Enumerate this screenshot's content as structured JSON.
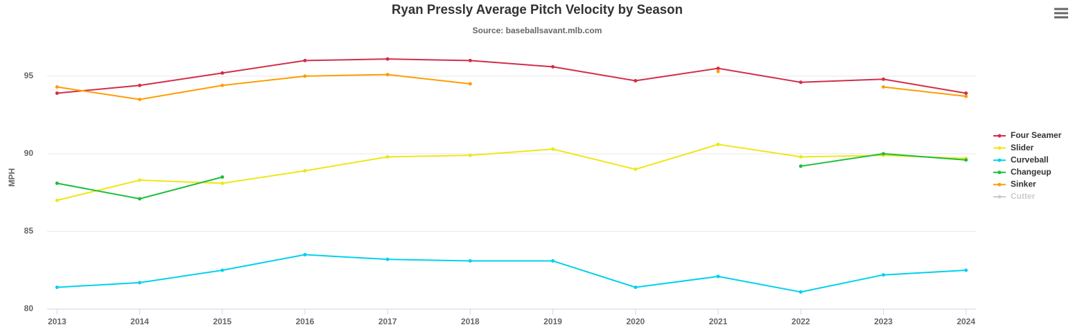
{
  "chart_data": {
    "type": "line",
    "title": "Ryan Pressly Average Pitch Velocity by Season",
    "subtitle": "Source: baseballsavant.mlb.com",
    "y_label": "MPH",
    "x": [
      2013,
      2014,
      2015,
      2016,
      2017,
      2018,
      2019,
      2020,
      2021,
      2022,
      2023,
      2024
    ],
    "xlim": [
      2012.88,
      2024.12
    ],
    "xticks": [
      2013,
      2014,
      2015,
      2016,
      2017,
      2018,
      2019,
      2020,
      2021,
      2022,
      2023,
      2024
    ],
    "ylim": [
      80,
      97
    ],
    "yticks": [
      80,
      85,
      90,
      95
    ],
    "grid": true,
    "legend": "right",
    "series": [
      {
        "name": "Four Seamer",
        "color": "#d22d49",
        "values": [
          93.9,
          94.4,
          95.2,
          96.0,
          96.1,
          96.0,
          95.6,
          94.7,
          95.5,
          94.6,
          94.8,
          93.9
        ]
      },
      {
        "name": "Slider",
        "color": "#eee716",
        "values": [
          87.0,
          88.3,
          88.1,
          88.9,
          89.8,
          89.9,
          90.3,
          89.0,
          90.6,
          89.8,
          89.9,
          89.7
        ]
      },
      {
        "name": "Curveball",
        "color": "#00d1ed",
        "values": [
          81.4,
          81.7,
          82.5,
          83.5,
          83.2,
          83.1,
          83.1,
          81.4,
          82.1,
          81.1,
          82.2,
          82.5
        ]
      },
      {
        "name": "Changeup",
        "color": "#1dbe3a",
        "values": [
          88.1,
          87.1,
          88.5,
          null,
          null,
          null,
          null,
          null,
          null,
          89.2,
          90.0,
          89.6
        ]
      },
      {
        "name": "Sinker",
        "color": "#fe9d00",
        "values": [
          94.3,
          93.5,
          94.4,
          95.0,
          95.1,
          94.5,
          null,
          null,
          95.3,
          null,
          94.3,
          93.7
        ]
      },
      {
        "name": "Cutter",
        "color": "#cccccc",
        "visible": false,
        "values": [
          null,
          null,
          null,
          null,
          null,
          null,
          null,
          null,
          null,
          null,
          null,
          null
        ]
      }
    ]
  }
}
